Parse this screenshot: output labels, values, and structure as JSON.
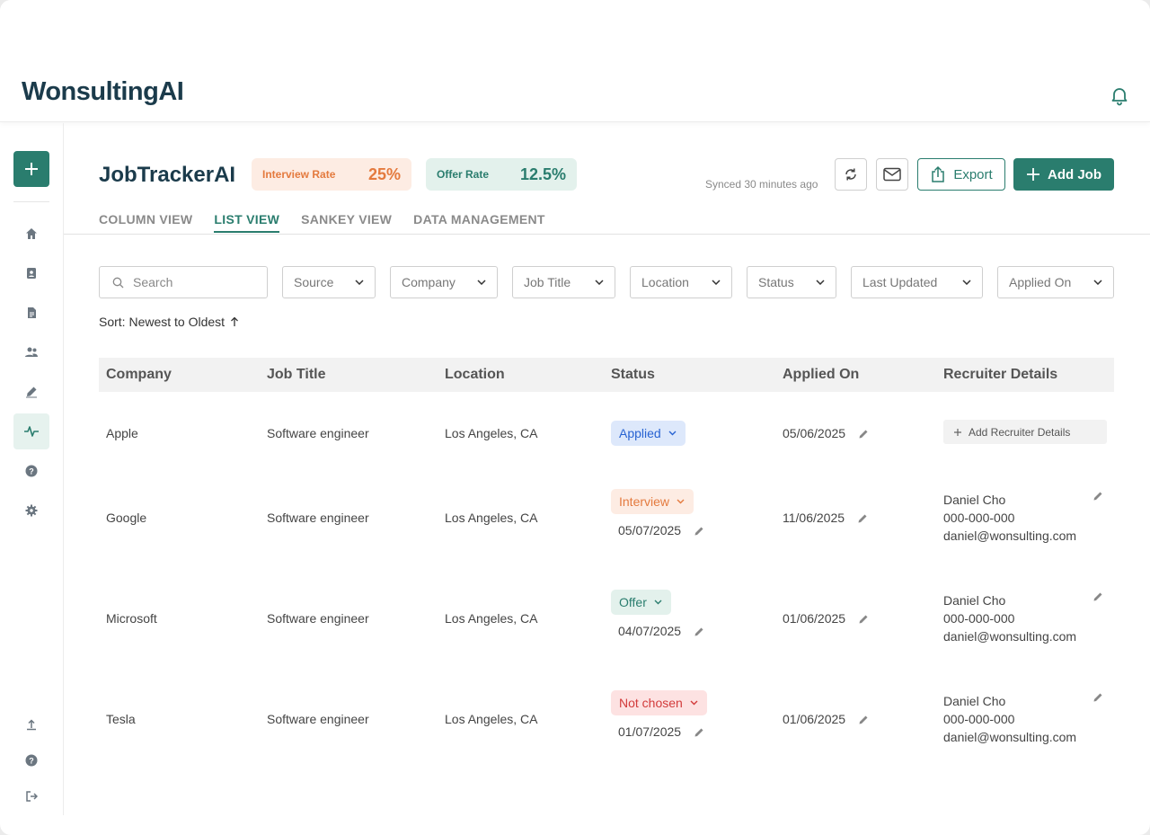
{
  "brand": {
    "logo_text": "WonsultingAI",
    "accent": "#2a7d6e"
  },
  "header": {
    "notifications_icon": "bell-icon"
  },
  "sidebar": {
    "add_icon": "plus-icon",
    "items": [
      {
        "icon": "home-icon"
      },
      {
        "icon": "contact-card-icon"
      },
      {
        "icon": "document-icon"
      },
      {
        "icon": "people-icon"
      },
      {
        "icon": "pen-icon"
      },
      {
        "icon": "activity-icon",
        "active": true
      },
      {
        "icon": "help-icon"
      },
      {
        "icon": "gear-icon"
      }
    ],
    "bottom": [
      {
        "icon": "upload-icon"
      },
      {
        "icon": "help-icon"
      },
      {
        "icon": "logout-icon"
      }
    ]
  },
  "page": {
    "title": "JobTrackerAI",
    "interview_rate": {
      "label": "Interview Rate",
      "value": "25%"
    },
    "offer_rate": {
      "label": "Offer Rate",
      "value": "12.5%"
    },
    "synced": "Synced 30 minutes ago",
    "export_label": "Export",
    "add_job_label": "Add Job"
  },
  "tabs": [
    {
      "label": "COLUMN VIEW"
    },
    {
      "label": "LIST VIEW",
      "active": true
    },
    {
      "label": "SANKEY VIEW"
    },
    {
      "label": "DATA MANAGEMENT"
    }
  ],
  "filters": {
    "search_placeholder": "Search",
    "dropdowns": [
      "Source",
      "Company",
      "Job Title",
      "Location",
      "Status",
      "Last Updated",
      "Applied On"
    ]
  },
  "sort": {
    "label": "Sort: Newest to Oldest"
  },
  "table": {
    "columns": [
      "Company",
      "Job Title",
      "Location",
      "Status",
      "Applied On",
      "Recruiter Details"
    ],
    "add_recruiter_label": "Add Recruiter Details",
    "rows": [
      {
        "company": "Apple",
        "job_title": "Software engineer",
        "location": "Los Angeles, CA",
        "status": "Applied",
        "status_date": "",
        "applied_on": "05/06/2025",
        "recruiter": null
      },
      {
        "company": "Google",
        "job_title": "Software engineer",
        "location": "Los Angeles, CA",
        "status": "Interview",
        "status_date": "05/07/2025",
        "applied_on": "11/06/2025",
        "recruiter": {
          "name": "Daniel Cho",
          "phone": "000-000-000",
          "email": "daniel@wonsulting.com"
        }
      },
      {
        "company": "Microsoft",
        "job_title": "Software engineer",
        "location": "Los Angeles, CA",
        "status": "Offer",
        "status_date": "04/07/2025",
        "applied_on": "01/06/2025",
        "recruiter": {
          "name": "Daniel Cho",
          "phone": "000-000-000",
          "email": "daniel@wonsulting.com"
        }
      },
      {
        "company": "Tesla",
        "job_title": "Software engineer",
        "location": "Los Angeles, CA",
        "status": "Not chosen",
        "status_date": "01/07/2025",
        "applied_on": "01/06/2025",
        "recruiter": {
          "name": "Daniel Cho",
          "phone": "000-000-000",
          "email": "daniel@wonsulting.com"
        }
      }
    ]
  }
}
